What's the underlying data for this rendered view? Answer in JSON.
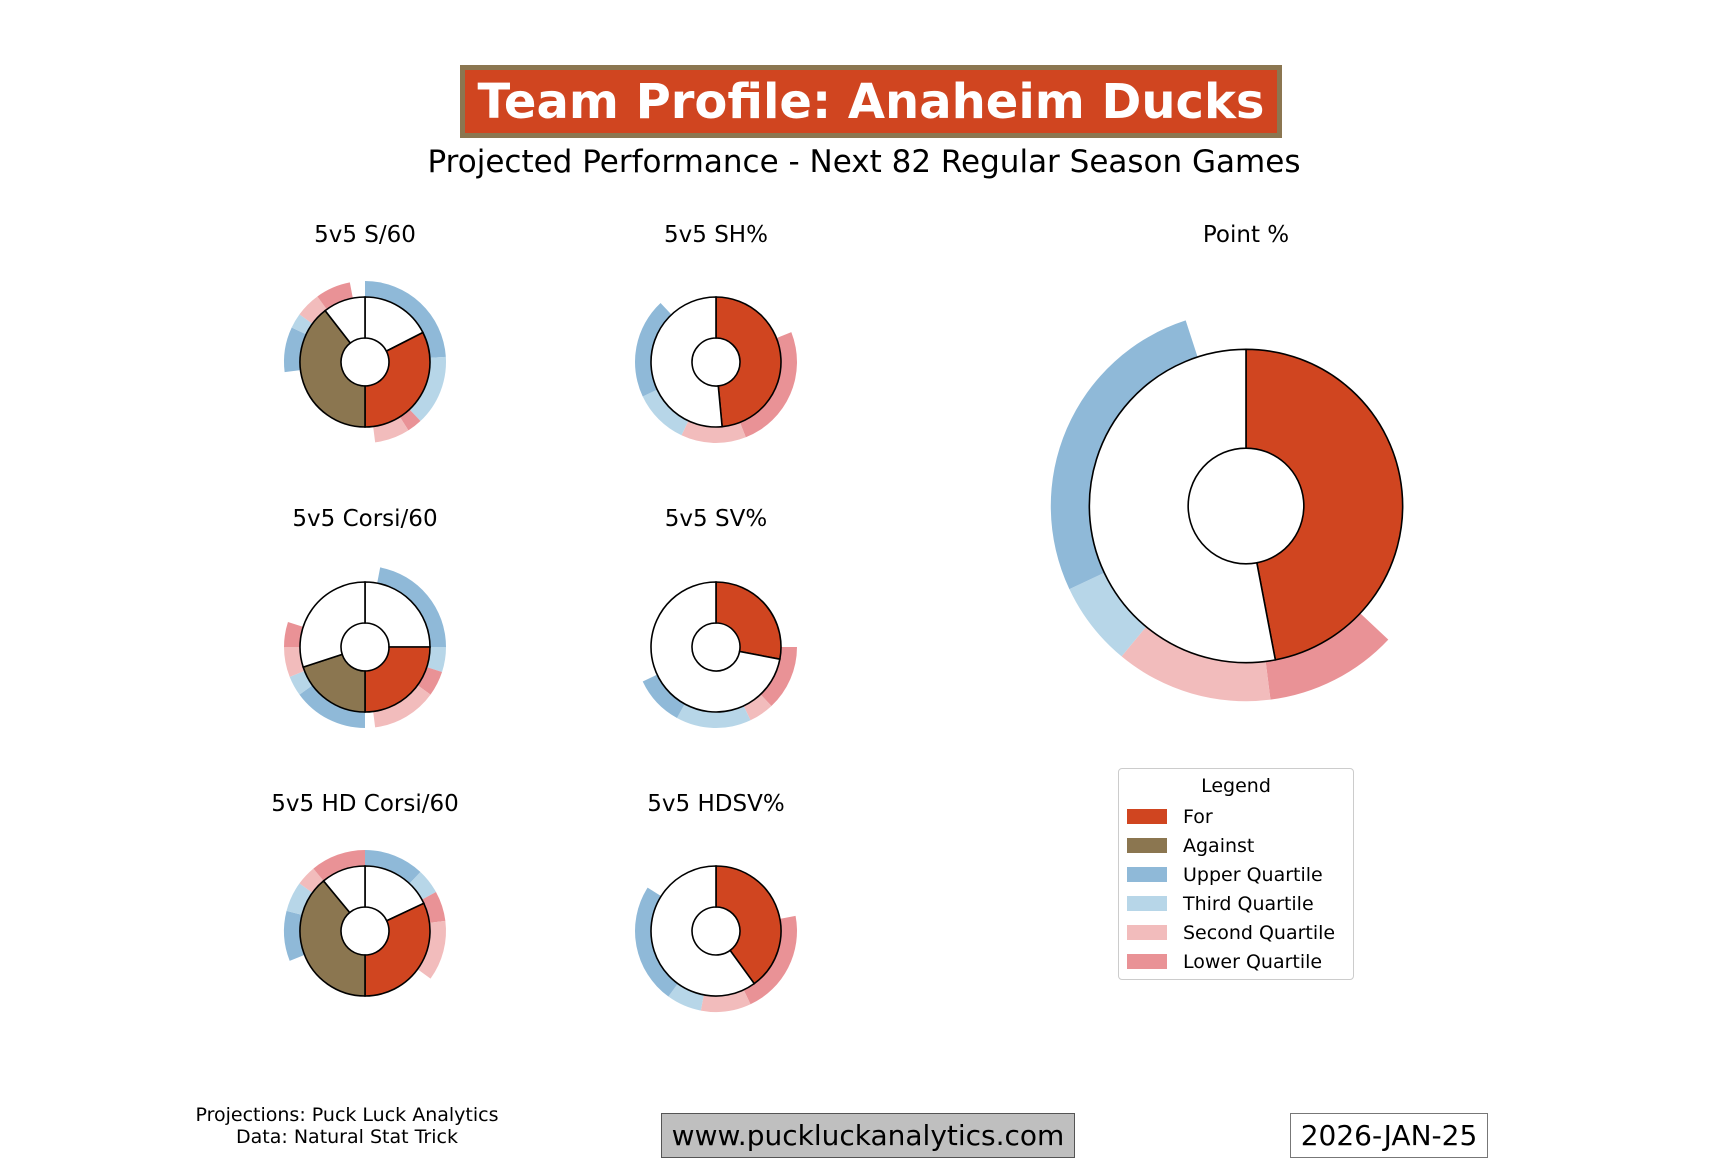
{
  "title": "Team Profile: Anaheim Ducks",
  "subtitle": "Projected Performance - Next 82 Regular Season Games",
  "colors": {
    "for": "#D04520",
    "against": "#8B7650",
    "upper": "#8FB9D8",
    "third": "#B7D6E8",
    "second": "#F2BCBC",
    "lower": "#E99296"
  },
  "chart_data": [
    {
      "type": "donut",
      "title": "5v5 S/60",
      "slices": [
        {
          "name": "For (empty)",
          "value": 0.175
        },
        {
          "name": "For",
          "value": 0.325
        },
        {
          "name": "Against",
          "value": 0.395
        },
        {
          "name": "Against (empty)",
          "value": 0.105
        }
      ],
      "quartile_ring": [
        {
          "band": "upper",
          "value": 0.24
        },
        {
          "band": "third",
          "value": 0.14
        },
        {
          "band": "lower",
          "value": 0.03
        },
        {
          "band": "second",
          "value": 0.07
        },
        {
          "band": "none",
          "value": 0.25
        },
        {
          "band": "upper",
          "value": 0.09
        },
        {
          "band": "third",
          "value": 0.03
        },
        {
          "band": "second",
          "value": 0.05
        },
        {
          "band": "lower",
          "value": 0.07
        },
        {
          "band": "none",
          "value": 0.03
        }
      ]
    },
    {
      "type": "donut",
      "title": "5v5 SH%",
      "slices": [
        {
          "name": "For",
          "value": 0.485
        },
        {
          "name": "Against (empty)",
          "value": 0.515
        }
      ],
      "quartile_ring": [
        {
          "band": "none",
          "value": 0.19
        },
        {
          "band": "lower",
          "value": 0.25
        },
        {
          "band": "second",
          "value": 0.13
        },
        {
          "band": "third",
          "value": 0.11
        },
        {
          "band": "upper",
          "value": 0.2
        },
        {
          "band": "none",
          "value": 0.12
        }
      ]
    },
    {
      "type": "donut",
      "title": "Point %",
      "slices": [
        {
          "name": "For",
          "value": 0.47
        },
        {
          "name": "Against (empty)",
          "value": 0.53
        }
      ],
      "quartile_ring": [
        {
          "band": "none",
          "value": 0.37
        },
        {
          "band": "lower",
          "value": 0.11
        },
        {
          "band": "second",
          "value": 0.13
        },
        {
          "band": "third",
          "value": 0.07
        },
        {
          "band": "upper",
          "value": 0.27
        },
        {
          "band": "none",
          "value": 0.05
        }
      ]
    },
    {
      "type": "donut",
      "title": "5v5 Corsi/60",
      "slices": [
        {
          "name": "For (empty)",
          "value": 0.25
        },
        {
          "name": "For",
          "value": 0.25
        },
        {
          "name": "Against",
          "value": 0.2
        },
        {
          "name": "Against (empty)",
          "value": 0.3
        }
      ],
      "quartile_ring": [
        {
          "band": "none",
          "value": 0.03
        },
        {
          "band": "upper",
          "value": 0.22
        },
        {
          "band": "third",
          "value": 0.05
        },
        {
          "band": "lower",
          "value": 0.05
        },
        {
          "band": "second",
          "value": 0.13
        },
        {
          "band": "none",
          "value": 0.02
        },
        {
          "band": "upper",
          "value": 0.15
        },
        {
          "band": "third",
          "value": 0.04
        },
        {
          "band": "second",
          "value": 0.06
        },
        {
          "band": "lower",
          "value": 0.05
        },
        {
          "band": "none",
          "value": 0.2
        }
      ]
    },
    {
      "type": "donut",
      "title": "5v5 SV%",
      "slices": [
        {
          "name": "For",
          "value": 0.28
        },
        {
          "name": "Against (empty)",
          "value": 0.72
        }
      ],
      "quartile_ring": [
        {
          "band": "none",
          "value": 0.25
        },
        {
          "band": "lower",
          "value": 0.13
        },
        {
          "band": "second",
          "value": 0.05
        },
        {
          "band": "third",
          "value": 0.15
        },
        {
          "band": "upper",
          "value": 0.1
        },
        {
          "band": "none",
          "value": 0.32
        }
      ]
    },
    {
      "type": "donut",
      "title": "5v5 HD Corsi/60",
      "slices": [
        {
          "name": "For (empty)",
          "value": 0.18
        },
        {
          "name": "For",
          "value": 0.32
        },
        {
          "name": "Against",
          "value": 0.39
        },
        {
          "name": "Against (empty)",
          "value": 0.11
        }
      ],
      "quartile_ring": [
        {
          "band": "upper",
          "value": 0.12
        },
        {
          "band": "third",
          "value": 0.05
        },
        {
          "band": "lower",
          "value": 0.06
        },
        {
          "band": "second",
          "value": 0.12
        },
        {
          "band": "none",
          "value": 0.34
        },
        {
          "band": "upper",
          "value": 0.1
        },
        {
          "band": "third",
          "value": 0.06
        },
        {
          "band": "second",
          "value": 0.04
        },
        {
          "band": "lower",
          "value": 0.11
        }
      ]
    },
    {
      "type": "donut",
      "title": "5v5 HDSV%",
      "slices": [
        {
          "name": "For",
          "value": 0.4
        },
        {
          "name": "Against (empty)",
          "value": 0.6
        }
      ],
      "quartile_ring": [
        {
          "band": "none",
          "value": 0.22
        },
        {
          "band": "lower",
          "value": 0.21
        },
        {
          "band": "second",
          "value": 0.1
        },
        {
          "band": "third",
          "value": 0.07
        },
        {
          "band": "upper",
          "value": 0.24
        },
        {
          "band": "none",
          "value": 0.16
        }
      ]
    }
  ],
  "legend": {
    "title": "Legend",
    "items": [
      {
        "label": "For",
        "color": "#D04520"
      },
      {
        "label": "Against",
        "color": "#8B7650"
      },
      {
        "label": "Upper Quartile",
        "color": "#8FB9D8"
      },
      {
        "label": "Third Quartile",
        "color": "#B7D6E8"
      },
      {
        "label": "Second Quartile",
        "color": "#F2BCBC"
      },
      {
        "label": "Lower Quartile",
        "color": "#E99296"
      }
    ]
  },
  "footer": {
    "projections": "Projections: Puck Luck Analytics",
    "data_source": "Data: Natural Stat Trick",
    "url": "www.puckluckanalytics.com",
    "date": "2026-JAN-25"
  }
}
